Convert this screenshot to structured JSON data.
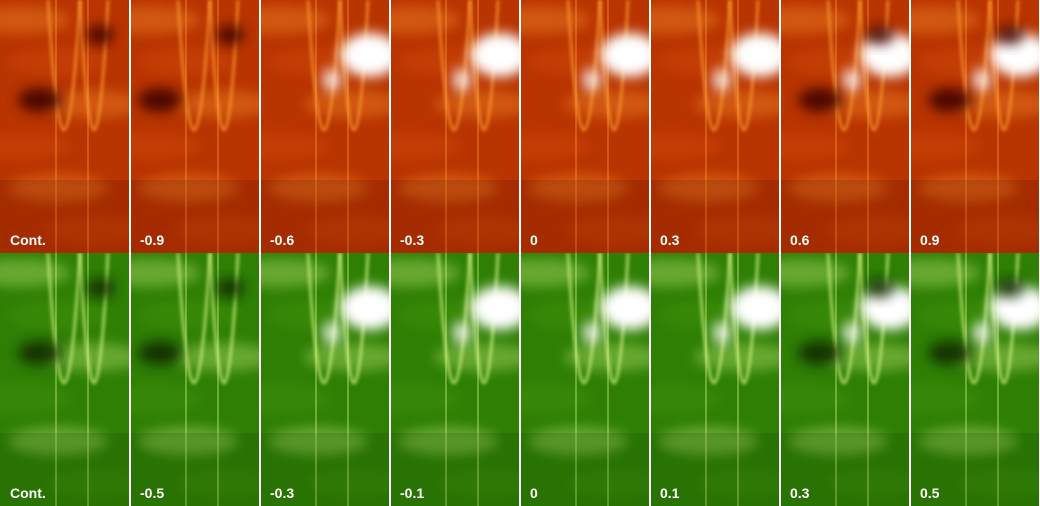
{
  "rows": [
    {
      "labels": [
        "Cont.",
        "-0.9",
        "-0.6",
        "-0.3",
        "0",
        "0.3",
        "0.6",
        "0.9"
      ]
    },
    {
      "labels": [
        "Cont.",
        "-0.5",
        "-0.3",
        "-0.1",
        "0",
        "0.1",
        "0.3",
        "0.5"
      ]
    }
  ]
}
